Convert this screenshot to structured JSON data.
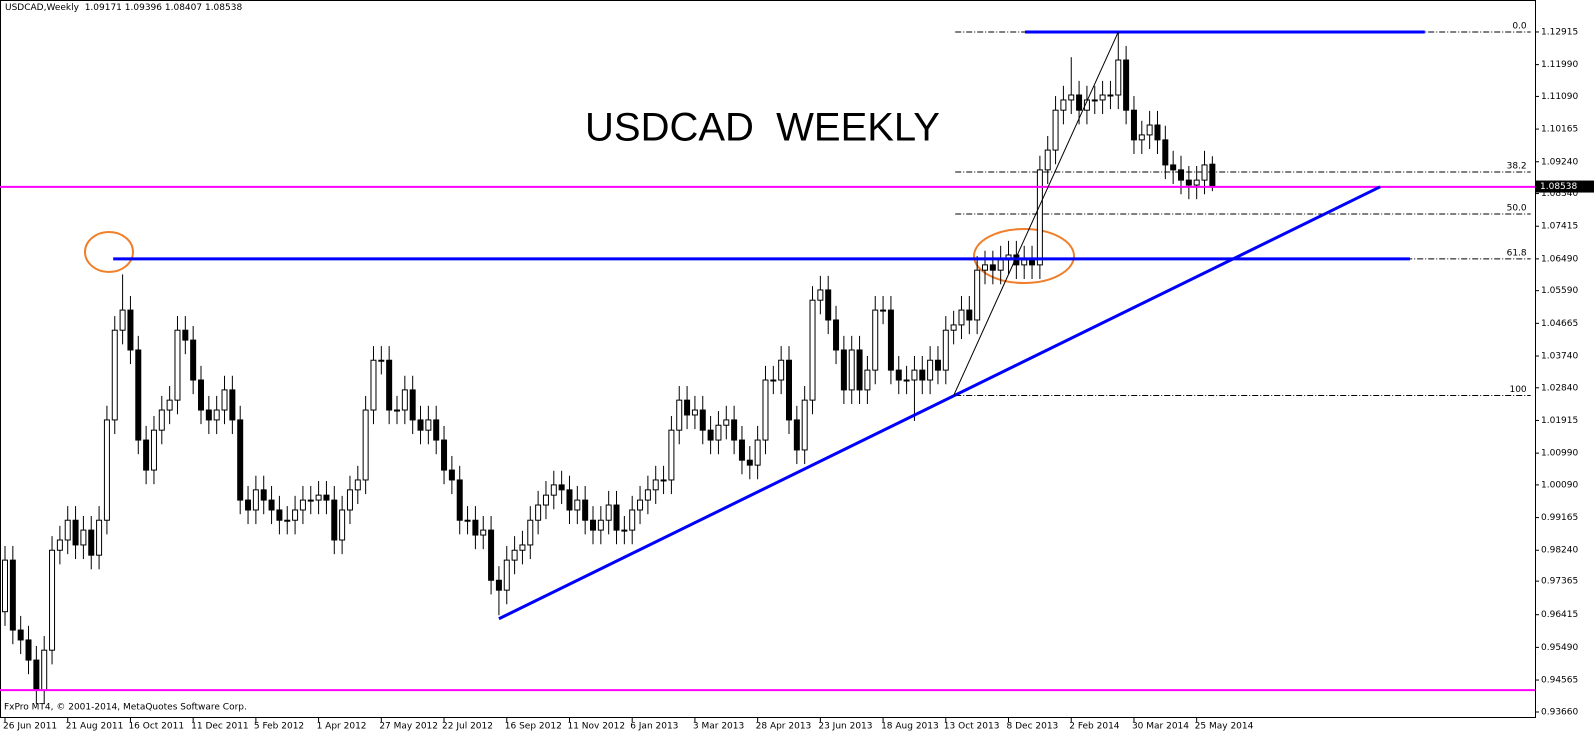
{
  "chart_data": {
    "type": "candlestick",
    "title": "USDCAD  WEEKLY",
    "symbol": "USDCAD,Weekly",
    "footer": "FxPro MT4, © 2001-2014, MetaQuotes Software Corp.",
    "categories": [
      "26 Jun 2011",
      null,
      null,
      null,
      null,
      null,
      null,
      null,
      "21 Aug 2011",
      null,
      null,
      null,
      null,
      null,
      null,
      null,
      "16 Oct 2011",
      null,
      null,
      null,
      null,
      null,
      null,
      null,
      "11 Dec 2011",
      null,
      null,
      null,
      null,
      null,
      null,
      null,
      "5 Feb 2012",
      null,
      null,
      null,
      null,
      null,
      null,
      null,
      "1 Apr 2012",
      null,
      null,
      null,
      null,
      null,
      null,
      null,
      "27 May 2012",
      null,
      null,
      null,
      null,
      null,
      null,
      null,
      "22 Jul 2012",
      null,
      null,
      null,
      null,
      null,
      null,
      null,
      "16 Sep 2012",
      null,
      null,
      null,
      null,
      null,
      null,
      null,
      "11 Nov 2012",
      null,
      null,
      null,
      null,
      null,
      null,
      null,
      "6 Jan 2013",
      null,
      null,
      null,
      null,
      null,
      null,
      null,
      "3 Mar 2013",
      null,
      null,
      null,
      null,
      null,
      null,
      null,
      "28 Apr 2013",
      null,
      null,
      null,
      null,
      null,
      null,
      null,
      "23 Jun 2013",
      null,
      null,
      null,
      null,
      null,
      null,
      null,
      "18 Aug 2013",
      null,
      null,
      null,
      null,
      null,
      null,
      null,
      "13 Oct 2013",
      null,
      null,
      null,
      null,
      null,
      null,
      null,
      "8 Dec 2013",
      null,
      null,
      null,
      null,
      null,
      null,
      null,
      "2 Feb 2014",
      null,
      null,
      null,
      null,
      null,
      null,
      null,
      "30 Mar 2014",
      null,
      null,
      null,
      null,
      null,
      null,
      null,
      "25 May 2014",
      null,
      null
    ],
    "open": [
      0.965,
      0.9796,
      0.9598,
      0.957,
      0.9513,
      0.9428,
      0.9541,
      0.9824,
      0.9853,
      0.9909,
      0.9839,
      0.9881,
      0.981,
      0.9909,
      1.0193,
      1.0447,
      1.0504,
      1.0391,
      1.0136,
      1.0051,
      1.0164,
      1.0221,
      1.0249,
      1.0447,
      1.0419,
      1.0306,
      1.0221,
      1.0193,
      1.0221,
      1.0278,
      1.0193,
      0.9966,
      0.9938,
      0.9995,
      0.9966,
      0.9938,
      0.9909,
      0.9909,
      0.9938,
      0.9966,
      0.9966,
      0.998,
      0.9966,
      0.9853,
      0.9938,
      0.9995,
      1.0023,
      1.0221,
      1.0362,
      1.0362,
      1.0221,
      1.0221,
      1.0278,
      1.0193,
      1.0164,
      1.0193,
      1.0136,
      1.0051,
      1.0023,
      0.9909,
      0.9909,
      0.9867,
      0.9881,
      0.9739,
      0.9711,
      0.9796,
      0.9824,
      0.9839,
      0.9909,
      0.9952,
      0.998,
      1.0009,
      0.9995,
      0.9938,
      0.9966,
      0.9909,
      0.9881,
      0.9909,
      0.9952,
      0.9881,
      0.9881,
      0.9938,
      0.9966,
      0.9995,
      1.0023,
      1.0023,
      1.0164,
      1.0249,
      1.0207,
      1.0221,
      1.0164,
      1.0136,
      1.0178,
      1.0193,
      1.0136,
      1.0079,
      1.0065,
      1.0136,
      1.0306,
      1.0306,
      1.0362,
      1.0193,
      1.0108,
      1.0249,
      1.0532,
      1.0561,
      1.0476,
      1.0391,
      1.0278,
      1.0391,
      1.0278,
      1.0334,
      1.0504,
      1.0504,
      1.0334,
      1.0306,
      1.0306,
      1.0334,
      1.0306,
      1.0362,
      1.0334,
      1.0447,
      1.0462,
      1.0504,
      1.0476,
      1.0617,
      1.0632,
      1.0617,
      1.0646,
      1.066,
      1.0632,
      1.0646,
      1.0632,
      1.0901,
      1.0957,
      1.107,
      1.1099,
      1.1113,
      1.107,
      1.1099,
      1.1099,
      1.1113,
      1.1113,
      1.1212,
      1.107,
      1.0986,
      1.1,
      1.1028,
      1.0986,
      1.0915,
      1.0901,
      1.0872,
      1.0858,
      1.0872,
      1.09171
    ],
    "high": [
      0.9836,
      0.9836,
      0.9638,
      0.961,
      0.9553,
      0.9581,
      0.9864,
      0.9893,
      0.9949,
      0.9949,
      0.9921,
      0.9921,
      0.9949,
      1.0233,
      1.0487,
      1.0605,
      1.0544,
      1.0431,
      1.0176,
      1.0204,
      1.0261,
      1.0289,
      1.0487,
      1.0487,
      1.0459,
      1.0346,
      1.0261,
      1.0261,
      1.0318,
      1.0318,
      1.0233,
      1.0006,
      1.0035,
      1.0035,
      1.0006,
      0.9978,
      0.9949,
      0.9978,
      1.0006,
      1.0006,
      1.002,
      1.002,
      1.0006,
      0.9978,
      1.0035,
      1.0063,
      1.0261,
      1.0402,
      1.0402,
      1.0402,
      1.0261,
      1.0318,
      1.0318,
      1.0233,
      1.0233,
      1.0233,
      1.0176,
      1.0091,
      1.0063,
      0.9949,
      0.9949,
      0.9921,
      0.9921,
      0.9779,
      0.9836,
      0.9864,
      0.9879,
      0.9949,
      0.9992,
      1.002,
      1.0049,
      1.0049,
      1.0035,
      1.0006,
      1.0006,
      0.9949,
      0.9949,
      0.9992,
      0.9992,
      0.9921,
      0.9978,
      1.0006,
      1.0035,
      1.0063,
      1.0063,
      1.0204,
      1.0289,
      1.0289,
      1.0261,
      1.0261,
      1.0204,
      1.0218,
      1.0233,
      1.0233,
      1.0176,
      1.0119,
      1.0176,
      1.0346,
      1.0346,
      1.0402,
      1.0402,
      1.0233,
      1.0289,
      1.0572,
      1.0601,
      1.0601,
      1.0516,
      1.0431,
      1.0431,
      1.0431,
      1.0374,
      1.0544,
      1.0544,
      1.0544,
      1.0374,
      1.0346,
      1.0374,
      1.0374,
      1.0402,
      1.0402,
      1.0487,
      1.0502,
      1.0544,
      1.0544,
      1.0657,
      1.0672,
      1.0672,
      1.0686,
      1.07,
      1.07,
      1.0686,
      1.0686,
      1.0941,
      1.0997,
      1.111,
      1.1139,
      1.122,
      1.1153,
      1.1139,
      1.1139,
      1.1153,
      1.1153,
      1.12915,
      1.1252,
      1.111,
      1.104,
      1.1068,
      1.1068,
      1.1026,
      1.0955,
      1.0941,
      1.0912,
      1.0912,
      1.0955,
      1.09396
    ],
    "low": [
      0.961,
      0.9558,
      0.953,
      0.9473,
      0.9388,
      0.9388,
      0.9501,
      0.9784,
      0.9813,
      0.9799,
      0.9799,
      0.977,
      0.977,
      0.9869,
      1.0153,
      1.0407,
      1.0351,
      1.0096,
      1.0011,
      1.0011,
      1.0124,
      1.0181,
      1.0209,
      1.0379,
      1.0266,
      1.0181,
      1.0153,
      1.0153,
      1.0181,
      1.0153,
      0.9926,
      0.9898,
      0.9898,
      0.9926,
      0.9898,
      0.9869,
      0.9869,
      0.9869,
      0.9898,
      0.9926,
      0.9926,
      0.9926,
      0.9813,
      0.9813,
      0.9898,
      0.9955,
      0.9983,
      1.0181,
      1.0322,
      1.0181,
      1.0181,
      1.0181,
      1.0153,
      1.0124,
      1.0124,
      1.0096,
      1.0011,
      0.9983,
      0.9869,
      0.9869,
      0.9827,
      0.9827,
      0.9699,
      0.964,
      0.9671,
      0.9756,
      0.9784,
      0.9799,
      0.9869,
      0.9912,
      0.994,
      0.9955,
      0.9898,
      0.9898,
      0.9869,
      0.9841,
      0.9841,
      0.9869,
      0.9841,
      0.9841,
      0.9841,
      0.9898,
      0.9926,
      0.9955,
      0.9983,
      0.9983,
      1.0124,
      1.0167,
      1.0167,
      1.0124,
      1.0096,
      1.0096,
      1.0138,
      1.0096,
      1.0039,
      1.0025,
      1.0025,
      1.0096,
      1.0266,
      1.0266,
      1.0153,
      1.0068,
      1.0068,
      1.0209,
      1.0492,
      1.0436,
      1.0351,
      1.0238,
      1.0238,
      1.0238,
      1.0238,
      1.0294,
      1.0464,
      1.0294,
      1.0266,
      1.0266,
      1.019,
      1.0266,
      1.0266,
      1.0294,
      1.0294,
      1.0407,
      1.0422,
      1.0436,
      1.0436,
      1.0577,
      1.0577,
      1.0577,
      1.0606,
      1.0592,
      1.0592,
      1.0592,
      1.0592,
      1.0861,
      1.0917,
      1.103,
      1.1059,
      1.103,
      1.103,
      1.1059,
      1.1059,
      1.1073,
      1.1073,
      1.103,
      1.0946,
      1.0946,
      1.096,
      1.0946,
      1.0875,
      1.0861,
      1.0832,
      1.0818,
      1.0818,
      1.0832,
      1.08407
    ],
    "close": [
      0.9796,
      0.9598,
      0.957,
      0.9513,
      0.9428,
      0.9541,
      0.9824,
      0.9853,
      0.9909,
      0.9839,
      0.9881,
      0.981,
      0.9909,
      1.0193,
      1.0447,
      1.0504,
      1.0391,
      1.0136,
      1.0051,
      1.0164,
      1.0221,
      1.0249,
      1.0447,
      1.0419,
      1.0306,
      1.0221,
      1.0193,
      1.0221,
      1.0278,
      1.0193,
      0.9966,
      0.9938,
      0.9995,
      0.9966,
      0.9938,
      0.9909,
      0.9909,
      0.9938,
      0.9966,
      0.9966,
      0.998,
      0.9966,
      0.9853,
      0.9938,
      0.9995,
      1.0023,
      1.0221,
      1.0362,
      1.0362,
      1.0221,
      1.0221,
      1.0278,
      1.0193,
      1.0164,
      1.0193,
      1.0136,
      1.0051,
      1.0023,
      0.9909,
      0.9909,
      0.9867,
      0.9881,
      0.9739,
      0.9711,
      0.9796,
      0.9824,
      0.9839,
      0.9909,
      0.9952,
      0.998,
      1.0009,
      0.9995,
      0.9938,
      0.9966,
      0.9909,
      0.9881,
      0.9909,
      0.9952,
      0.9881,
      0.9881,
      0.9938,
      0.9966,
      0.9995,
      1.0023,
      1.0023,
      1.0164,
      1.0249,
      1.0207,
      1.0221,
      1.0164,
      1.0136,
      1.0178,
      1.0193,
      1.0136,
      1.0079,
      1.0065,
      1.0136,
      1.0306,
      1.0306,
      1.0362,
      1.0193,
      1.0108,
      1.0249,
      1.0532,
      1.0561,
      1.0476,
      1.0391,
      1.0278,
      1.0391,
      1.0278,
      1.0334,
      1.0504,
      1.0504,
      1.0334,
      1.0306,
      1.0306,
      1.0334,
      1.0306,
      1.0362,
      1.0334,
      1.0447,
      1.0462,
      1.0504,
      1.0476,
      1.0617,
      1.0632,
      1.0617,
      1.0646,
      1.066,
      1.0632,
      1.0646,
      1.0632,
      1.0901,
      1.0957,
      1.107,
      1.1099,
      1.1113,
      1.107,
      1.1099,
      1.1099,
      1.1113,
      1.1113,
      1.1212,
      1.107,
      1.0986,
      1.1,
      1.1028,
      1.0986,
      1.0915,
      1.0901,
      1.0872,
      1.0858,
      1.0872,
      1.0915,
      1.08538
    ],
    "ylim": [
      0.9349,
      1.1382
    ],
    "yticks": [
      {
        "value": 1.12915,
        "label": "1.12915"
      },
      {
        "value": 1.1199,
        "label": "1.11990"
      },
      {
        "value": 1.1109,
        "label": "1.11090"
      },
      {
        "value": 1.10165,
        "label": "1.10165"
      },
      {
        "value": 1.0924,
        "label": "1.09240"
      },
      {
        "value": 1.0834,
        "label": "1.08340"
      },
      {
        "value": 1.07415,
        "label": "1.07415"
      },
      {
        "value": 1.0649,
        "label": "1.06490"
      },
      {
        "value": 1.0559,
        "label": "1.05590"
      },
      {
        "value": 1.04665,
        "label": "1.04665"
      },
      {
        "value": 1.0374,
        "label": "1.03740"
      },
      {
        "value": 1.0284,
        "label": "1.02840"
      },
      {
        "value": 1.01915,
        "label": "1.01915"
      },
      {
        "value": 1.0099,
        "label": "1.00990"
      },
      {
        "value": 1.0009,
        "label": "1.00090"
      },
      {
        "value": 0.99165,
        "label": "0.99165"
      },
      {
        "value": 0.9824,
        "label": "0.98240"
      },
      {
        "value": 0.97365,
        "label": "0.97365"
      },
      {
        "value": 0.96415,
        "label": "0.96415"
      },
      {
        "value": 0.9549,
        "label": "0.95490"
      },
      {
        "value": 0.94565,
        "label": "0.94565"
      },
      {
        "value": 0.9366,
        "label": "0.93660"
      }
    ],
    "hlines": [
      {
        "price": 1.0853,
        "color": "#ff00ff"
      },
      {
        "price": 0.9428,
        "color": "#ff00ff"
      }
    ],
    "segments": [
      {
        "from": [
          13.8,
          1.0649
        ],
        "to": [
          179.2,
          1.0649
        ],
        "color": "#0000ff",
        "width": 3
      },
      {
        "from": [
          130.1,
          1.12915
        ],
        "to": [
          181.1,
          1.12915
        ],
        "color": "#0000ff",
        "width": 3
      },
      {
        "from": [
          63,
          0.963
        ],
        "to": [
          175.4,
          1.0853
        ],
        "color": "#0000ff",
        "width": 3
      },
      {
        "from": [
          121,
          1.0262
        ],
        "to": [
          142,
          1.12915
        ],
        "color": "#000000",
        "width": 1
      }
    ],
    "fib_levels": [
      {
        "label": "0.0",
        "price": 1.12915
      },
      {
        "label": "38.2",
        "price": 1.0895
      },
      {
        "label": "50.0",
        "price": 1.0776
      },
      {
        "label": "61.8",
        "price": 1.0649
      },
      {
        "label": "100",
        "price": 1.0262
      }
    ],
    "fib_range": [
      121.2,
      194.6
    ]
  }
}
